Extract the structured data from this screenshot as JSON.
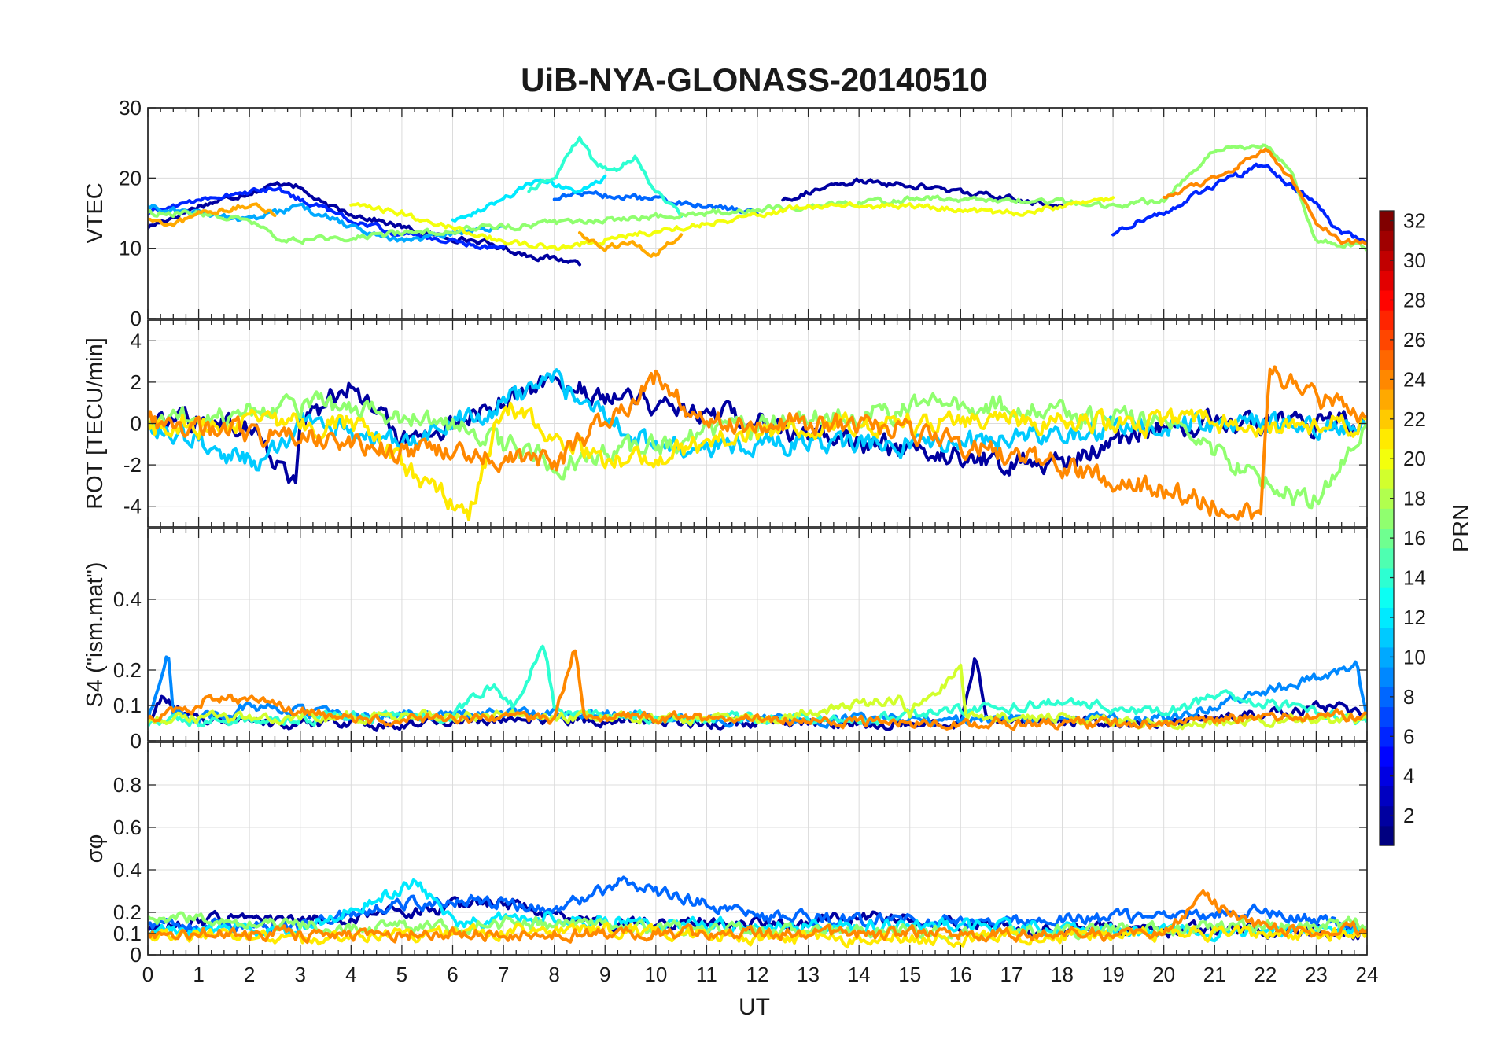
{
  "chart_data": {
    "type": "line",
    "title": "UiB-NYA-GLONASS-20140510",
    "xlabel": "UT",
    "xlim": [
      0,
      24
    ],
    "xticks": [
      0,
      1,
      2,
      3,
      4,
      5,
      6,
      7,
      8,
      9,
      10,
      11,
      12,
      13,
      14,
      15,
      16,
      17,
      18,
      19,
      20,
      21,
      22,
      23,
      24
    ],
    "colorbar": {
      "label": "PRN",
      "range": [
        1,
        32
      ],
      "ticks": [
        2,
        4,
        6,
        8,
        10,
        12,
        14,
        16,
        18,
        20,
        22,
        24,
        26,
        28,
        30,
        32
      ],
      "colormap": "jet"
    },
    "panels": [
      {
        "id": "vtec",
        "ylabel": "VTEC",
        "ylim": [
          0,
          30
        ],
        "yticks": [
          0,
          10,
          20,
          30
        ],
        "series": [
          {
            "prn": 2,
            "x": [
              0,
              1,
              2,
              2.8,
              3.5,
              4.5,
              5.5,
              6.5,
              7.5,
              8.5
            ],
            "y": [
              13,
              16,
              18,
              19.5,
              16,
              14,
              12,
              11,
              9,
              8
            ]
          },
          {
            "prn": 2,
            "x": [
              12.5,
              13,
              14,
              15,
              16,
              17,
              18
            ],
            "y": [
              17,
              18,
              19.5,
              19,
              18,
              17,
              16
            ]
          },
          {
            "prn": 6,
            "x": [
              0,
              1,
              2,
              2.5,
              3,
              4,
              5,
              6,
              7
            ],
            "y": [
              15,
              17,
              18,
              18.5,
              17,
              14,
              12,
              11,
              10
            ]
          },
          {
            "prn": 6,
            "x": [
              19,
              19.5,
              20,
              21,
              22,
              23,
              23.5,
              24
            ],
            "y": [
              12,
              14,
              15,
              19,
              22,
              16,
              12,
              11
            ]
          },
          {
            "prn": 8,
            "x": [
              8,
              8.5,
              9,
              10,
              11,
              12
            ],
            "y": [
              17,
              18,
              17.5,
              17,
              16,
              15
            ]
          },
          {
            "prn": 10,
            "x": [
              0,
              1,
              2,
              3,
              4,
              5,
              6,
              7
            ],
            "y": [
              16,
              15,
              14,
              16,
              13,
              11,
              12,
              13
            ]
          },
          {
            "prn": 12,
            "x": [
              6,
              7,
              7.7,
              8,
              8.5,
              9
            ],
            "y": [
              14,
              17,
              20,
              19,
              18,
              20
            ]
          },
          {
            "prn": 14,
            "x": [
              7.5,
              8,
              8.5,
              8.8,
              9.2,
              9.6,
              10,
              10.5
            ],
            "y": [
              18,
              20,
              26,
              22,
              21,
              23,
              18,
              15
            ]
          },
          {
            "prn": 17,
            "x": [
              0,
              1,
              2,
              2.6,
              13,
              15,
              17,
              19,
              20,
              21,
              22,
              22.5,
              23,
              24
            ],
            "y": [
              15,
              15,
              14,
              11,
              16,
              17,
              17,
              16,
              17,
              24,
              25,
              21,
              11,
              10
            ]
          },
          {
            "prn": 20,
            "x": [
              4,
              5,
              6,
              7,
              8,
              13,
              15,
              17,
              19
            ],
            "y": [
              16,
              15,
              13,
              11,
              10,
              16,
              16,
              15,
              17
            ]
          },
          {
            "prn": 23,
            "x": [
              0,
              0.5,
              1,
              2,
              2.5
            ],
            "y": [
              14,
              13,
              15,
              16,
              15
            ]
          },
          {
            "prn": 23,
            "x": [
              8.5,
              9,
              9.5,
              10,
              10.5
            ],
            "y": [
              12,
              10,
              11,
              9,
              12
            ]
          },
          {
            "prn": 24,
            "x": [
              20,
              21,
              22,
              22.5,
              23,
              23.5,
              24
            ],
            "y": [
              17,
              20,
              24,
              20,
              14,
              11,
              11
            ]
          }
        ]
      },
      {
        "id": "rot",
        "ylabel": "ROT [TECU/min]",
        "ylim": [
          -5,
          5
        ],
        "yticks": [
          -4,
          -2,
          0,
          2,
          4
        ],
        "series": [
          {
            "prn": 2,
            "x": [
              0,
              2,
              2.9,
              3,
              4,
              5,
              8,
              14,
              17.8,
              20,
              24
            ],
            "y": [
              0,
              0,
              -3,
              0,
              2,
              -1,
              2,
              -1,
              -2,
              0,
              0
            ]
          },
          {
            "prn": 11,
            "x": [
              0,
              2.2,
              3,
              5,
              8,
              10,
              16,
              20,
              24
            ],
            "y": [
              0,
              -2,
              0,
              -1,
              2,
              -1,
              -1,
              0,
              0
            ]
          },
          {
            "prn": 17,
            "x": [
              0,
              3,
              6,
              8,
              12,
              16,
              20,
              22.9,
              24
            ],
            "y": [
              0,
              1,
              0,
              -2,
              0,
              1,
              0,
              -4,
              0
            ]
          },
          {
            "prn": 21,
            "x": [
              0,
              4,
              5,
              6.3,
              7,
              9,
              13,
              16,
              20,
              24
            ],
            "y": [
              0,
              0,
              -2,
              -4.5,
              1,
              -2,
              0,
              0,
              0,
              0
            ]
          },
          {
            "prn": 24,
            "x": [
              0,
              8,
              10,
              11,
              14,
              18,
              21.9,
              22.1,
              24
            ],
            "y": [
              0,
              -2,
              2.3,
              0,
              0,
              -2,
              -4.5,
              2.5,
              0
            ]
          }
        ]
      },
      {
        "id": "s4",
        "ylabel": "S4 (\"ism.mat\")",
        "ylim": [
          0,
          0.6
        ],
        "yticks": [
          0,
          0.1,
          0.2,
          0.4
        ],
        "series": [
          {
            "prn": 2,
            "x": [
              0,
              0.3,
              1,
              3,
              5,
              8,
              12,
              16,
              16.3,
              16.5,
              20,
              23.5,
              24
            ],
            "y": [
              0.05,
              0.12,
              0.06,
              0.05,
              0.05,
              0.06,
              0.05,
              0.05,
              0.24,
              0.06,
              0.05,
              0.1,
              0.06
            ]
          },
          {
            "prn": 9,
            "x": [
              0,
              0.4,
              0.5,
              1,
              2,
              4,
              8,
              12,
              16,
              20,
              23.8,
              24
            ],
            "y": [
              0.06,
              0.25,
              0.08,
              0.06,
              0.1,
              0.07,
              0.08,
              0.06,
              0.06,
              0.06,
              0.21,
              0.06
            ]
          },
          {
            "prn": 14,
            "x": [
              0,
              2,
              6,
              6.8,
              7.2,
              7.8,
              8,
              8.2,
              10,
              14,
              18,
              20,
              21.2,
              24
            ],
            "y": [
              0.05,
              0.06,
              0.07,
              0.16,
              0.1,
              0.27,
              0.1,
              0.08,
              0.07,
              0.06,
              0.11,
              0.08,
              0.13,
              0.05
            ]
          },
          {
            "prn": 19,
            "x": [
              0,
              4,
              8,
              12,
              14.8,
              15,
              16,
              16.1,
              16.3,
              20,
              24
            ],
            "y": [
              0.06,
              0.07,
              0.07,
              0.06,
              0.12,
              0.08,
              0.2,
              0.08,
              0.07,
              0.05,
              0.06
            ]
          },
          {
            "prn": 24,
            "x": [
              0,
              1,
              1.2,
              4,
              8,
              8.4,
              8.6,
              12,
              16,
              20,
              22,
              24
            ],
            "y": [
              0.07,
              0.09,
              0.13,
              0.06,
              0.06,
              0.26,
              0.07,
              0.06,
              0.05,
              0.05,
              0.07,
              0.07
            ]
          }
        ]
      },
      {
        "id": "sigma",
        "ylabel": "σφ",
        "ylim": [
          0,
          1
        ],
        "yticks": [
          0,
          0.1,
          0.2,
          0.4,
          0.6,
          0.8
        ],
        "series": [
          {
            "prn": 2,
            "x": [
              0,
              2,
              3,
              5,
              7,
              9,
              12,
              15,
              17,
              20,
              24
            ],
            "y": [
              0.12,
              0.18,
              0.15,
              0.2,
              0.25,
              0.15,
              0.14,
              0.18,
              0.12,
              0.12,
              0.1
            ]
          },
          {
            "prn": 8,
            "x": [
              0,
              3,
              5.2,
              7,
              8,
              9.3,
              12,
              16,
              20,
              22,
              24
            ],
            "y": [
              0.15,
              0.13,
              0.25,
              0.25,
              0.2,
              0.34,
              0.18,
              0.15,
              0.18,
              0.2,
              0.12
            ]
          },
          {
            "prn": 12,
            "x": [
              0,
              3,
              5.3,
              6,
              8,
              12,
              16,
              20,
              24
            ],
            "y": [
              0.1,
              0.12,
              0.34,
              0.15,
              0.18,
              0.13,
              0.14,
              0.1,
              0.12
            ]
          },
          {
            "prn": 17,
            "x": [
              0,
              2,
              4,
              6,
              8,
              10,
              12,
              16,
              20,
              24
            ],
            "y": [
              0.18,
              0.15,
              0.12,
              0.14,
              0.15,
              0.12,
              0.12,
              0.1,
              0.12,
              0.15
            ]
          },
          {
            "prn": 21,
            "x": [
              0,
              3,
              6,
              9,
              12,
              16,
              20,
              24
            ],
            "y": [
              0.1,
              0.08,
              0.1,
              0.12,
              0.08,
              0.08,
              0.1,
              0.1
            ]
          },
          {
            "prn": 24,
            "x": [
              0,
              4,
              8,
              12,
              16,
              20,
              20.8,
              22,
              24
            ],
            "y": [
              0.1,
              0.1,
              0.1,
              0.1,
              0.1,
              0.1,
              0.27,
              0.12,
              0.12
            ]
          }
        ]
      }
    ]
  }
}
